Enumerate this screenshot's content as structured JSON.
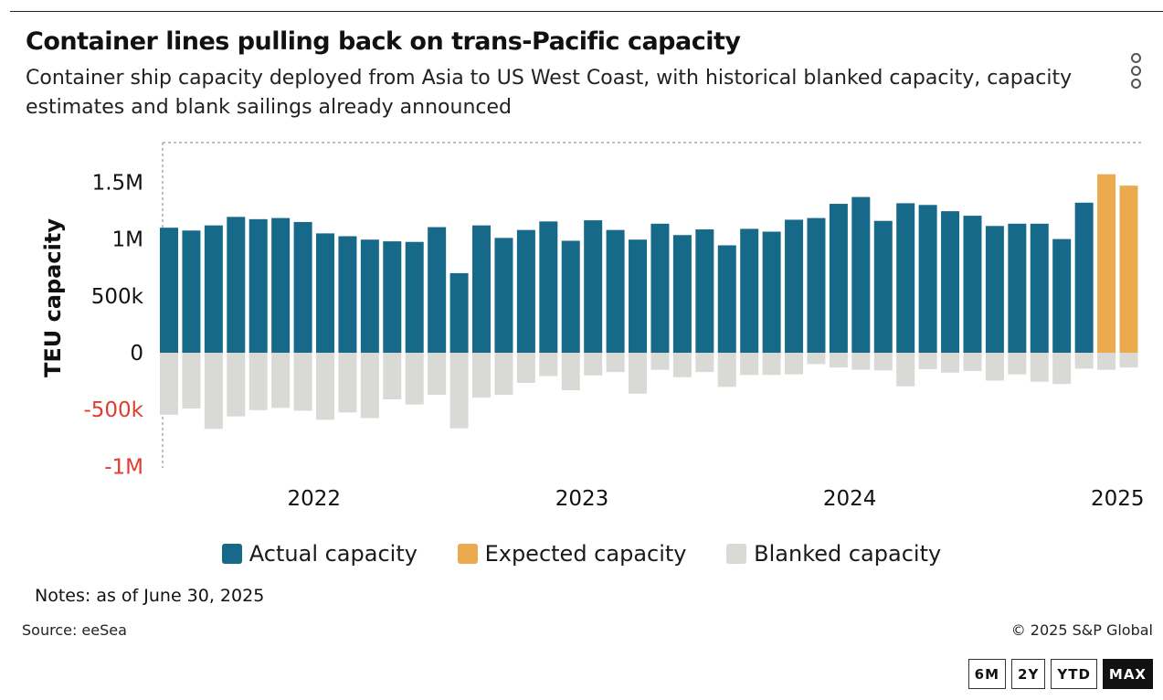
{
  "header": {
    "title": "Container lines pulling back on trans-Pacific capacity",
    "subtitle": "Container ship capacity deployed from Asia to US West Coast, with historical blanked capacity, capacity estimates and blank sailings already announced"
  },
  "menu": {
    "icon": "kebab-menu-icon"
  },
  "colors": {
    "actual": "#17698a",
    "expected": "#ecaa4e",
    "blanked": "#d9d9d5",
    "negative_tick": "#e03c31",
    "text": "#111111"
  },
  "chart_data": {
    "type": "bar",
    "ylabel": "TEU capacity",
    "ylim": [
      -1000000,
      1800000
    ],
    "yticks": [
      {
        "value": 1500000,
        "label": "1.5M"
      },
      {
        "value": 1000000,
        "label": "1M"
      },
      {
        "value": 500000,
        "label": "500k"
      },
      {
        "value": 0,
        "label": "0"
      },
      {
        "value": -500000,
        "label": "-500k"
      },
      {
        "value": -1000000,
        "label": "-1M"
      }
    ],
    "xticks": [
      {
        "index": 6.5,
        "label": "2022"
      },
      {
        "index": 18.5,
        "label": "2023"
      },
      {
        "index": 30.5,
        "label": "2024"
      },
      {
        "index": 42.5,
        "label": "2025"
      }
    ],
    "grid": false,
    "legend_position": "bottom",
    "series": [
      {
        "name": "Actual capacity",
        "values": [
          1100000,
          1075000,
          1120000,
          1195000,
          1175000,
          1185000,
          1150000,
          1050000,
          1025000,
          995000,
          980000,
          975000,
          1105000,
          700000,
          1120000,
          1010000,
          1080000,
          1155000,
          985000,
          1165000,
          1080000,
          995000,
          1135000,
          1035000,
          1085000,
          945000,
          1090000,
          1065000,
          1170000,
          1185000,
          1310000,
          1370000,
          1160000,
          1315000,
          1300000,
          1245000,
          1205000,
          1115000,
          1135000,
          1135000,
          1000000,
          1320000,
          null,
          null
        ]
      },
      {
        "name": "Expected capacity",
        "values": [
          null,
          null,
          null,
          null,
          null,
          null,
          null,
          null,
          null,
          null,
          null,
          null,
          null,
          null,
          null,
          null,
          null,
          null,
          null,
          null,
          null,
          null,
          null,
          null,
          null,
          null,
          null,
          null,
          null,
          null,
          null,
          null,
          null,
          null,
          null,
          null,
          null,
          null,
          null,
          null,
          null,
          null,
          1570000,
          1470000
        ]
      },
      {
        "name": "Blanked capacity",
        "values": [
          -545000,
          -490000,
          -670000,
          -560000,
          -505000,
          -485000,
          -510000,
          -590000,
          -525000,
          -575000,
          -410000,
          -455000,
          -370000,
          -665000,
          -395000,
          -370000,
          -265000,
          -205000,
          -330000,
          -200000,
          -170000,
          -360000,
          -150000,
          -215000,
          -170000,
          -300000,
          -195000,
          -195000,
          -190000,
          -100000,
          -130000,
          -150000,
          -155000,
          -295000,
          -145000,
          -175000,
          -160000,
          -245000,
          -190000,
          -255000,
          -275000,
          -140000,
          -150000,
          -130000
        ]
      }
    ]
  },
  "legend": {
    "items": [
      {
        "label": "Actual capacity"
      },
      {
        "label": "Expected capacity"
      },
      {
        "label": "Blanked capacity"
      }
    ]
  },
  "footer": {
    "notes": "Notes: as of June 30, 2025",
    "source": "Source: eeSea",
    "copyright": "© 2025 S&P Global"
  },
  "ranges": {
    "six_months": "6M",
    "two_years": "2Y",
    "ytd": "YTD",
    "max": "MAX",
    "active": "MAX"
  }
}
